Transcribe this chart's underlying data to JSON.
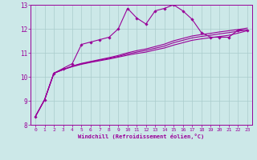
{
  "bg_color": "#cce8e8",
  "line_color": "#990099",
  "grid_color": "#aacccc",
  "xlabel": "Windchill (Refroidissement éolien,°C)",
  "xlim": [
    -0.5,
    23.5
  ],
  "ylim": [
    8,
    13
  ],
  "yticks": [
    8,
    9,
    10,
    11,
    12,
    13
  ],
  "xticks": [
    0,
    1,
    2,
    3,
    4,
    5,
    6,
    7,
    8,
    9,
    10,
    11,
    12,
    13,
    14,
    15,
    16,
    17,
    18,
    19,
    20,
    21,
    22,
    23
  ],
  "line1_x": [
    0,
    1,
    2,
    3,
    4,
    5,
    6,
    7,
    8,
    9,
    10,
    11,
    12,
    13,
    14,
    15,
    16,
    17,
    18,
    19,
    20,
    21,
    22,
    23
  ],
  "line1_y": [
    8.35,
    9.05,
    10.15,
    10.35,
    10.55,
    11.35,
    11.45,
    11.55,
    11.65,
    12.0,
    12.85,
    12.45,
    12.2,
    12.75,
    12.85,
    13.0,
    12.75,
    12.4,
    11.85,
    11.65,
    11.65,
    11.65,
    11.95,
    11.95
  ],
  "line2_x": [
    0,
    1,
    2,
    3,
    4,
    5,
    6,
    7,
    8,
    9,
    10,
    11,
    12,
    13,
    14,
    15,
    16,
    17,
    18,
    19,
    20,
    21,
    22,
    23
  ],
  "line2_y": [
    8.35,
    9.05,
    10.15,
    10.3,
    10.42,
    10.52,
    10.6,
    10.67,
    10.74,
    10.82,
    10.9,
    10.97,
    11.03,
    11.12,
    11.2,
    11.32,
    11.42,
    11.52,
    11.58,
    11.63,
    11.68,
    11.73,
    11.82,
    11.92
  ],
  "line3_x": [
    0,
    1,
    2,
    3,
    4,
    5,
    6,
    7,
    8,
    9,
    10,
    11,
    12,
    13,
    14,
    15,
    16,
    17,
    18,
    19,
    20,
    21,
    22,
    23
  ],
  "line3_y": [
    8.35,
    9.05,
    10.15,
    10.3,
    10.44,
    10.54,
    10.62,
    10.7,
    10.77,
    10.85,
    10.95,
    11.03,
    11.1,
    11.19,
    11.28,
    11.42,
    11.52,
    11.62,
    11.68,
    11.73,
    11.79,
    11.84,
    11.9,
    11.96
  ],
  "line4_x": [
    0,
    1,
    2,
    3,
    4,
    5,
    6,
    7,
    8,
    9,
    10,
    11,
    12,
    13,
    14,
    15,
    16,
    17,
    18,
    19,
    20,
    21,
    22,
    23
  ],
  "line4_y": [
    8.35,
    9.05,
    10.15,
    10.3,
    10.45,
    10.56,
    10.64,
    10.72,
    10.8,
    10.89,
    11.0,
    11.09,
    11.16,
    11.26,
    11.36,
    11.5,
    11.6,
    11.7,
    11.76,
    11.81,
    11.87,
    11.92,
    11.97,
    12.03
  ],
  "marker": "D",
  "marker_size": 1.8,
  "linewidth": 0.8
}
